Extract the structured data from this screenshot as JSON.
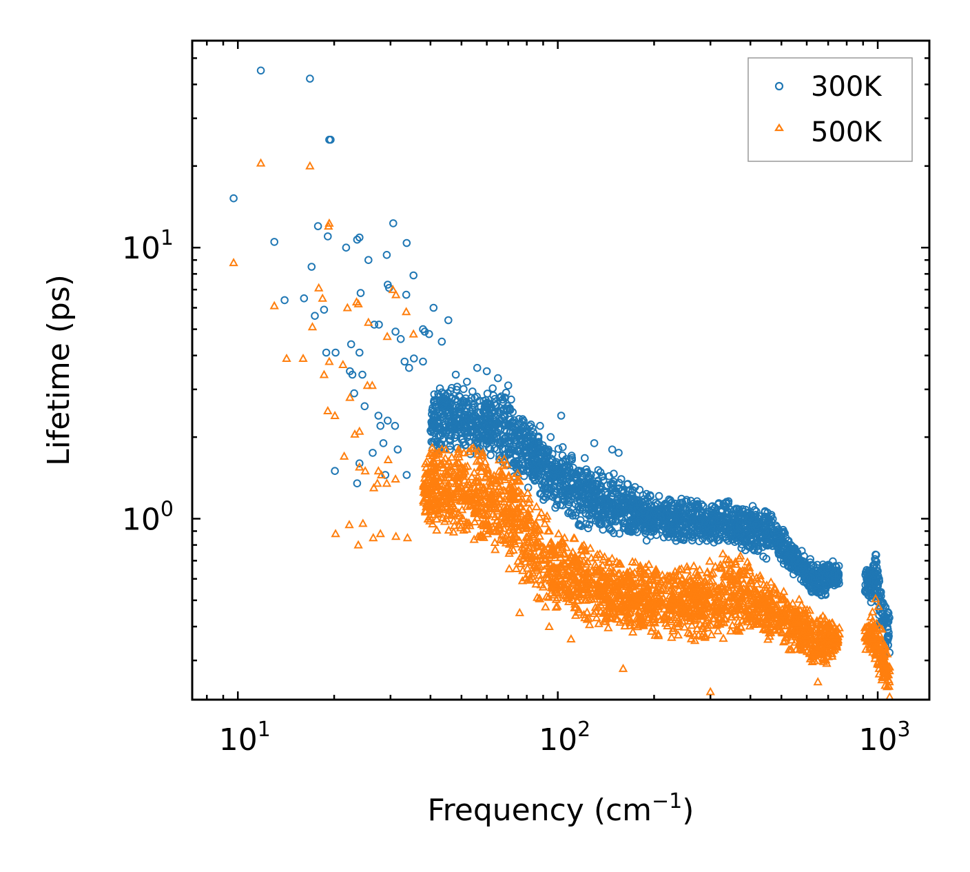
{
  "chart_data": {
    "type": "scatter",
    "title": "",
    "xlabel": "Frequency (cm",
    "xlabel_sup": "−1",
    "xlabel_suffix": ")",
    "ylabel": "Lifetime (ps)",
    "xscale": "log",
    "yscale": "log",
    "xlim": [
      7.2,
      1450
    ],
    "ylim": [
      0.215,
      58
    ],
    "x_ticks": [
      {
        "base": "10",
        "exp": "1",
        "value": 10
      },
      {
        "base": "10",
        "exp": "2",
        "value": 100
      },
      {
        "base": "10",
        "exp": "3",
        "value": 1000
      }
    ],
    "y_ticks": [
      {
        "base": "10",
        "exp": "0",
        "value": 1
      },
      {
        "base": "10",
        "exp": "1",
        "value": 10
      }
    ],
    "legend_position": "top-right",
    "series": [
      {
        "name": "300K",
        "marker": "circle-open",
        "color": "#1f77b4",
        "points": [
          [
            11.8,
            45
          ],
          [
            16.8,
            42
          ],
          [
            19.3,
            25
          ],
          [
            19.5,
            25
          ],
          [
            9.7,
            15.2
          ],
          [
            13,
            10.5
          ],
          [
            17.8,
            12
          ],
          [
            19.1,
            11
          ],
          [
            21.8,
            10
          ],
          [
            23.6,
            10.7
          ],
          [
            24,
            10.9
          ],
          [
            30.6,
            12.3
          ],
          [
            33.7,
            10.4
          ],
          [
            25.6,
            9.0
          ],
          [
            29.2,
            9.4
          ],
          [
            17,
            8.5
          ],
          [
            35.4,
            7.9
          ],
          [
            29.4,
            7.3
          ],
          [
            29.7,
            7.1
          ],
          [
            33.6,
            6.7
          ],
          [
            24.2,
            6.8
          ],
          [
            14,
            6.4
          ],
          [
            16.1,
            6.5
          ],
          [
            18.6,
            5.9
          ],
          [
            17.4,
            5.6
          ],
          [
            26.7,
            5.2
          ],
          [
            27.6,
            5.2
          ],
          [
            40.9,
            6.0
          ],
          [
            45.5,
            5.4
          ],
          [
            31.1,
            4.9
          ],
          [
            32.3,
            4.6
          ],
          [
            37.9,
            5.0
          ],
          [
            38.4,
            4.9
          ],
          [
            39.6,
            4.8
          ],
          [
            43.4,
            4.5
          ],
          [
            22.6,
            4.4
          ],
          [
            18.9,
            4.1
          ],
          [
            20.2,
            4.1
          ],
          [
            24,
            4.1
          ],
          [
            34.3,
            3.6
          ],
          [
            33.2,
            3.8
          ],
          [
            35.5,
            3.9
          ],
          [
            37.9,
            3.8
          ],
          [
            22.4,
            3.5
          ],
          [
            22.8,
            3.4
          ],
          [
            24.5,
            3.4
          ],
          [
            23.1,
            2.9
          ],
          [
            24.9,
            2.6
          ],
          [
            27.5,
            2.4
          ],
          [
            27.9,
            2.2
          ],
          [
            29.4,
            2.3
          ],
          [
            31,
            2.2
          ],
          [
            28.5,
            1.9
          ],
          [
            26.4,
            1.75
          ],
          [
            31.6,
            1.8
          ],
          [
            24,
            1.6
          ],
          [
            20.1,
            1.5
          ],
          [
            23.6,
            1.35
          ],
          [
            28.9,
            1.45
          ],
          [
            33.7,
            1.45
          ],
          [
            102.5,
            2.4
          ],
          [
            130,
            1.9
          ],
          [
            148,
            1.8
          ],
          [
            155,
            1.75
          ],
          [
            88,
            2.2
          ],
          [
            95,
            2.0
          ],
          [
            65,
            3.3
          ],
          [
            70,
            3.1
          ],
          [
            56,
            3.6
          ],
          [
            60,
            3.5
          ],
          [
            48,
            3.4
          ],
          [
            52,
            3.2
          ]
        ],
        "envelope": [
          [
            40,
            1.7,
            3.1
          ],
          [
            50,
            1.7,
            3.2
          ],
          [
            60,
            1.6,
            3.1
          ],
          [
            70,
            1.45,
            3.0
          ],
          [
            80,
            1.3,
            2.6
          ],
          [
            90,
            1.15,
            2.1
          ],
          [
            100,
            1.05,
            1.9
          ],
          [
            120,
            0.9,
            1.7
          ],
          [
            150,
            0.85,
            1.5
          ],
          [
            200,
            0.82,
            1.25
          ],
          [
            250,
            0.8,
            1.2
          ],
          [
            300,
            0.8,
            1.2
          ],
          [
            350,
            0.78,
            1.2
          ],
          [
            420,
            0.72,
            1.12
          ],
          [
            480,
            0.7,
            1.05
          ],
          [
            520,
            0.65,
            0.9
          ],
          [
            560,
            0.6,
            0.8
          ],
          [
            600,
            0.55,
            0.73
          ],
          [
            650,
            0.5,
            0.7
          ],
          [
            700,
            0.52,
            0.72
          ],
          [
            740,
            0.55,
            0.7
          ],
          [
            930,
            0.5,
            0.66
          ],
          [
            990,
            0.45,
            0.78
          ],
          [
            1040,
            0.35,
            0.55
          ],
          [
            1090,
            0.3,
            0.45
          ]
        ]
      },
      {
        "name": "500K",
        "marker": "triangle-open",
        "color": "#ff7f0e",
        "points": [
          [
            11.8,
            20.5
          ],
          [
            16.8,
            20
          ],
          [
            9.7,
            8.8
          ],
          [
            19.3,
            12.3
          ],
          [
            19.2,
            12
          ],
          [
            13,
            6.1
          ],
          [
            17.9,
            7.1
          ],
          [
            18.4,
            6.5
          ],
          [
            23.5,
            6.3
          ],
          [
            23.8,
            6.2
          ],
          [
            22,
            6.0
          ],
          [
            30.5,
            7.0
          ],
          [
            31.2,
            6.7
          ],
          [
            35.4,
            4.8
          ],
          [
            33.6,
            5.8
          ],
          [
            25.6,
            5.3
          ],
          [
            29.3,
            4.7
          ],
          [
            14.2,
            3.9
          ],
          [
            16,
            3.9
          ],
          [
            19.3,
            3.8
          ],
          [
            21.3,
            3.7
          ],
          [
            18.6,
            3.4
          ],
          [
            17.1,
            5.1
          ],
          [
            25.4,
            3.1
          ],
          [
            26.3,
            3.1
          ],
          [
            22.4,
            2.8
          ],
          [
            19.1,
            2.5
          ],
          [
            20.1,
            2.4
          ],
          [
            24,
            2.1
          ],
          [
            23.2,
            2.05
          ],
          [
            21.5,
            1.7
          ],
          [
            29.5,
            1.65
          ],
          [
            24,
            1.55
          ],
          [
            25,
            1.5
          ],
          [
            27.3,
            1.35
          ],
          [
            26.6,
            1.3
          ],
          [
            28.1,
            1.45
          ],
          [
            27.5,
            1.5
          ],
          [
            29.2,
            1.35
          ],
          [
            31.1,
            1.4
          ],
          [
            22.3,
            0.95
          ],
          [
            20.2,
            0.88
          ],
          [
            23.8,
            0.8
          ],
          [
            26.5,
            0.85
          ],
          [
            27.9,
            0.88
          ],
          [
            31.2,
            0.86
          ],
          [
            33.9,
            0.85
          ],
          [
            24.6,
            0.96
          ],
          [
            76,
            0.45
          ],
          [
            94,
            0.4
          ],
          [
            110,
            0.36
          ],
          [
            160,
            0.28
          ],
          [
            300,
            0.23
          ],
          [
            650,
            0.25
          ],
          [
            1070,
            0.24
          ],
          [
            1090,
            0.22
          ]
        ],
        "envelope": [
          [
            38,
            0.95,
            1.9
          ],
          [
            45,
            0.85,
            1.9
          ],
          [
            50,
            0.82,
            2.0
          ],
          [
            60,
            0.75,
            1.9
          ],
          [
            70,
            0.65,
            1.8
          ],
          [
            80,
            0.55,
            1.35
          ],
          [
            90,
            0.45,
            1.1
          ],
          [
            100,
            0.42,
            0.95
          ],
          [
            120,
            0.4,
            0.85
          ],
          [
            150,
            0.38,
            0.75
          ],
          [
            200,
            0.36,
            0.7
          ],
          [
            250,
            0.35,
            0.68
          ],
          [
            300,
            0.35,
            0.72
          ],
          [
            350,
            0.36,
            0.78
          ],
          [
            400,
            0.36,
            0.72
          ],
          [
            450,
            0.35,
            0.62
          ],
          [
            500,
            0.34,
            0.58
          ],
          [
            560,
            0.3,
            0.52
          ],
          [
            620,
            0.28,
            0.47
          ],
          [
            680,
            0.28,
            0.44
          ],
          [
            740,
            0.32,
            0.42
          ],
          [
            930,
            0.32,
            0.42
          ],
          [
            990,
            0.28,
            0.55
          ],
          [
            1040,
            0.24,
            0.38
          ],
          [
            1090,
            0.21,
            0.3
          ]
        ]
      }
    ]
  }
}
